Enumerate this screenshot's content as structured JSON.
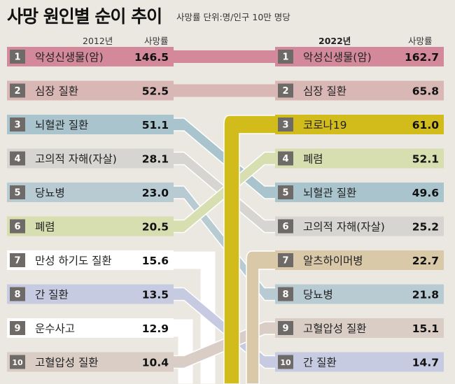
{
  "title": "사망 원인별 순이 추이",
  "subtitle": "사망률 단위:명/인구 10만 명당",
  "headers": {
    "left_year": "2012년",
    "left_rate": "사망률",
    "right_year": "2022년",
    "right_rate": "사망률"
  },
  "chart_data": {
    "type": "table",
    "value_label": "사망률",
    "unit": "명/인구 10만 명당",
    "left": {
      "year": "2012년",
      "rows": [
        {
          "rank": "1",
          "cause": "악성신생물(암)",
          "rate": "146.5",
          "color": "#d3899a"
        },
        {
          "rank": "2",
          "cause": "심장 질환",
          "rate": "52.5",
          "color": "#d9b7b5"
        },
        {
          "rank": "3",
          "cause": "뇌혈관 질환",
          "rate": "51.1",
          "color": "#a9c4cd"
        },
        {
          "rank": "4",
          "cause": "고의적 자해(자살)",
          "rate": "28.1",
          "color": "#d7d5d2"
        },
        {
          "rank": "5",
          "cause": "당뇨병",
          "rate": "23.0",
          "color": "#b8cbd3"
        },
        {
          "rank": "6",
          "cause": "폐렴",
          "rate": "20.5",
          "color": "#d7deb0"
        },
        {
          "rank": "7",
          "cause": "만성 하기도 질환",
          "rate": "15.6",
          "color": "#ffffff"
        },
        {
          "rank": "8",
          "cause": "간 질환",
          "rate": "13.5",
          "color": "#c6cbe2"
        },
        {
          "rank": "9",
          "cause": "운수사고",
          "rate": "12.9",
          "color": "#ffffff"
        },
        {
          "rank": "10",
          "cause": "고혈압성 질환",
          "rate": "10.4",
          "color": "#d9cdc6"
        }
      ]
    },
    "right": {
      "year": "2022년",
      "rows": [
        {
          "rank": "1",
          "cause": "악성신생물(암)",
          "rate": "162.7",
          "color": "#d3899a"
        },
        {
          "rank": "2",
          "cause": "심장 질환",
          "rate": "65.8",
          "color": "#d9b7b5"
        },
        {
          "rank": "3",
          "cause": "코로나19",
          "rate": "61.0",
          "color": "#d2bc1c"
        },
        {
          "rank": "4",
          "cause": "폐렴",
          "rate": "52.1",
          "color": "#d7deb0"
        },
        {
          "rank": "5",
          "cause": "뇌혈관 질환",
          "rate": "49.6",
          "color": "#a9c4cd"
        },
        {
          "rank": "6",
          "cause": "고의적 자해(자살)",
          "rate": "25.2",
          "color": "#d7d5d2"
        },
        {
          "rank": "7",
          "cause": "알츠하이머병",
          "rate": "22.7",
          "color": "#d9c9a9"
        },
        {
          "rank": "8",
          "cause": "당뇨병",
          "rate": "21.8",
          "color": "#b8cbd3"
        },
        {
          "rank": "9",
          "cause": "고혈압성 질환",
          "rate": "15.1",
          "color": "#d9cdc6"
        },
        {
          "rank": "10",
          "cause": "간 질환",
          "rate": "14.7",
          "color": "#c6cbe2"
        }
      ]
    },
    "links": [
      {
        "from": "1",
        "to": "1"
      },
      {
        "from": "2",
        "to": "2"
      },
      {
        "from": "3",
        "to": "5"
      },
      {
        "from": "4",
        "to": "6"
      },
      {
        "from": "5",
        "to": "8"
      },
      {
        "from": "6",
        "to": "4"
      },
      {
        "from": "7",
        "to": null
      },
      {
        "from": "8",
        "to": "10"
      },
      {
        "from": "9",
        "to": null
      },
      {
        "from": "10",
        "to": "9"
      },
      {
        "from": null,
        "to": "3"
      },
      {
        "from": null,
        "to": "7"
      }
    ]
  }
}
